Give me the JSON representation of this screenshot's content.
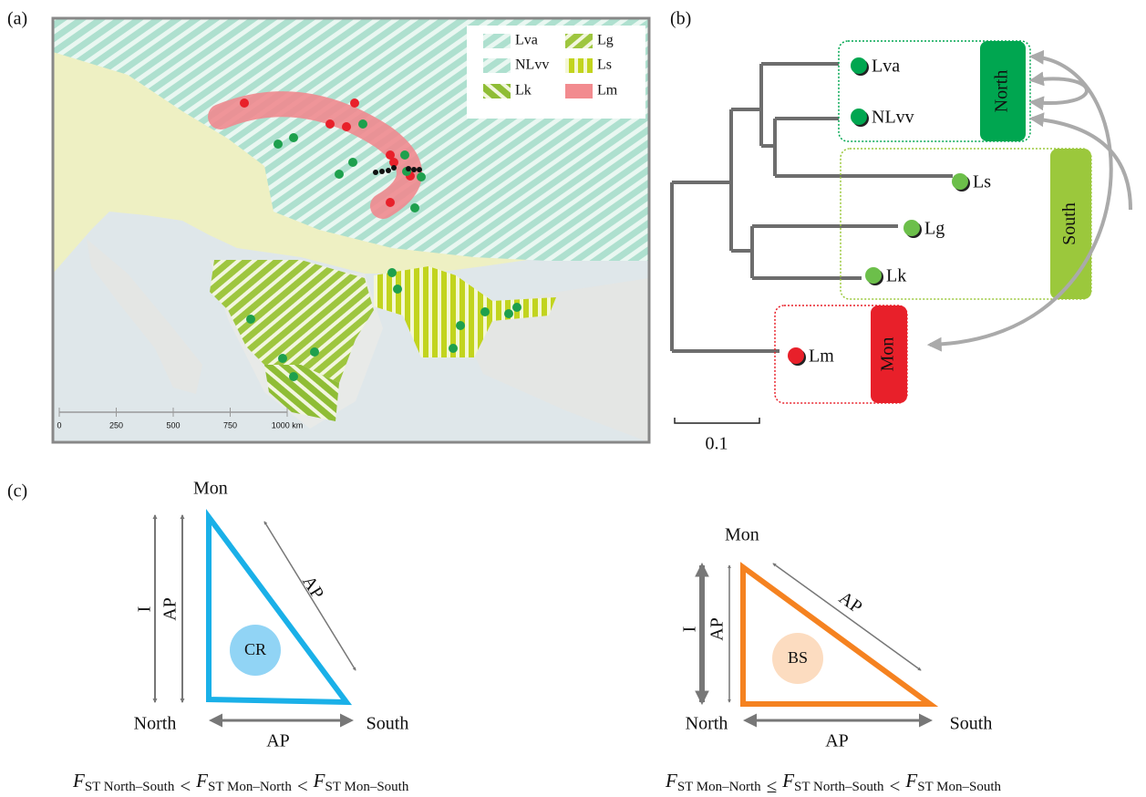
{
  "panel_a": {
    "label": "(a)",
    "legend": [
      "Lva",
      "NLvv",
      "Lk",
      "Lg",
      "Ls",
      "Lm"
    ],
    "scale_bar": [
      "0",
      "250",
      "500",
      "750",
      "1000 km"
    ]
  },
  "panel_b": {
    "label": "(b)",
    "tips": [
      "Lva",
      "NLvv",
      "Ls",
      "Lg",
      "Lk",
      "Lm"
    ],
    "groups": [
      "North",
      "South",
      "Mon"
    ],
    "scale_bar": "0.1"
  },
  "panel_c": {
    "label": "(c)",
    "triangles": [
      {
        "vertices": [
          "Mon",
          "North",
          "South"
        ],
        "edges": [
          "I",
          "AP",
          "AP",
          "AP"
        ],
        "center": "CR",
        "inequality": {
          "terms": [
            {
              "symbol": "F",
              "subscript": "ST North–South"
            },
            {
              "symbol": "F",
              "subscript": "ST Mon–North"
            },
            {
              "symbol": "F",
              "subscript": "ST Mon–South"
            }
          ],
          "operators": [
            "<",
            "<"
          ]
        }
      },
      {
        "vertices": [
          "Mon",
          "North",
          "South"
        ],
        "edges": [
          "I",
          "AP",
          "AP",
          "AP"
        ],
        "center": "BS",
        "inequality": {
          "terms": [
            {
              "symbol": "F",
              "subscript": "ST Mon–North"
            },
            {
              "symbol": "F",
              "subscript": "ST North–South"
            },
            {
              "symbol": "F",
              "subscript": "ST Mon–South"
            }
          ],
          "operators": [
            "≤",
            "<"
          ]
        }
      }
    ]
  }
}
